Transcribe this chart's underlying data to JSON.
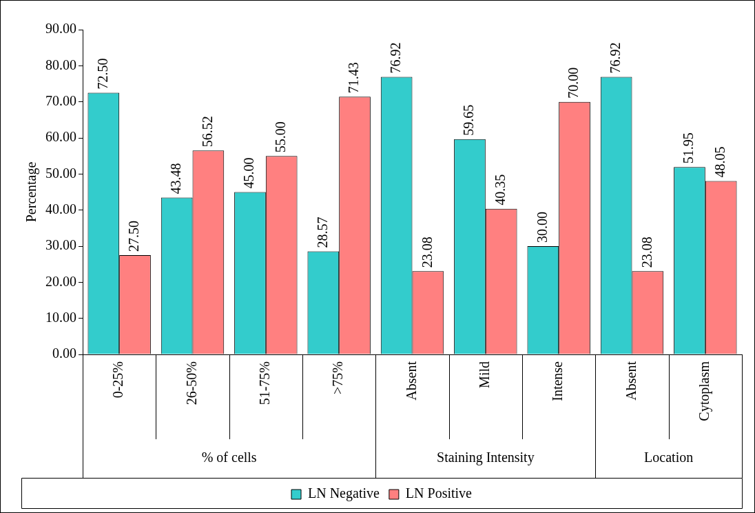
{
  "chart_data": {
    "type": "bar",
    "ylabel": "Percentage",
    "categories": [
      "0-25%",
      "26-50%",
      "51-75%",
      ">75%",
      "Absent",
      "Mild",
      "Intense",
      "Absent",
      "Cytoplasm"
    ],
    "series": [
      {
        "name": "LN Negative",
        "color": "#33cccc",
        "values": [
          72.5,
          43.48,
          45,
          28.57,
          76.92,
          59.65,
          30,
          76.92,
          51.95
        ],
        "value_labels": [
          "72.50",
          "43.48",
          "45.00",
          "28.57",
          "76.92",
          "59.65",
          "30.00",
          "76.92",
          "51.95"
        ]
      },
      {
        "name": "LN Positive",
        "color": "#ff8080",
        "values": [
          27.5,
          56.52,
          55,
          71.43,
          23.08,
          40.35,
          70,
          23.08,
          48.05
        ],
        "value_labels": [
          "27.50",
          "56.52",
          "55.00",
          "71.43",
          "23.08",
          "40.35",
          "70.00",
          "23.08",
          "48.05"
        ]
      }
    ],
    "ylim": [
      0,
      90
    ],
    "yticks": [
      {
        "value": 0,
        "label": "0.00"
      },
      {
        "value": 10,
        "label": "10.00"
      },
      {
        "value": 20,
        "label": "20.00"
      },
      {
        "value": 30,
        "label": "30.00"
      },
      {
        "value": 40,
        "label": "40.00"
      },
      {
        "value": 50,
        "label": "50.00"
      },
      {
        "value": 60,
        "label": "60.00"
      },
      {
        "value": 70,
        "label": "70.00"
      },
      {
        "value": 80,
        "label": "80.00"
      },
      {
        "value": 90,
        "label": "90.00"
      }
    ],
    "annotations": [
      "% of cells",
      "Staining Intensity",
      "Location"
    ],
    "grid": false,
    "legend": "bottom"
  }
}
